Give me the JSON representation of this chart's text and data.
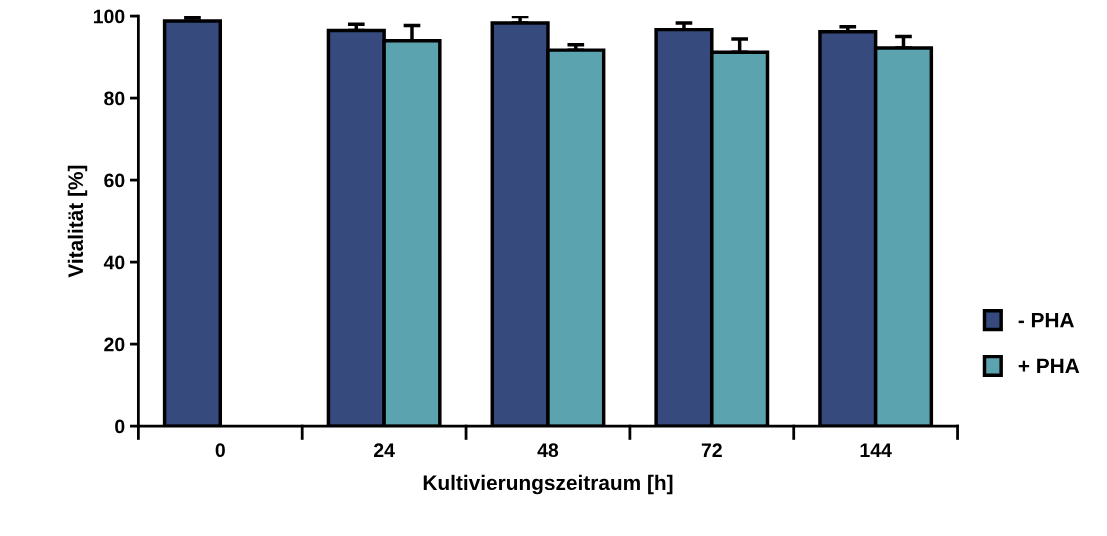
{
  "chart_data": {
    "type": "bar",
    "xlabel": "Kultivierungszeitraum [h]",
    "ylabel": "Vitalität [%]",
    "categories": [
      "0",
      "24",
      "48",
      "72",
      "144"
    ],
    "series": [
      {
        "name": "- PHA",
        "color": "#364a7e",
        "values": [
          98.8,
          96.5,
          98.3,
          96.7,
          96.2
        ],
        "errors": [
          [
            98.8,
            99.7
          ],
          [
            96.5,
            98.0
          ],
          [
            98.3,
            99.9
          ],
          [
            96.7,
            98.3
          ],
          [
            96.2,
            97.4
          ]
        ]
      },
      {
        "name": "+ PHA",
        "color": "#5ba3ae",
        "values": [
          null,
          94.0,
          91.7,
          91.2,
          92.2
        ],
        "errors": [
          null,
          [
            94.0,
            97.7
          ],
          [
            91.7,
            93.0
          ],
          [
            91.2,
            94.4
          ],
          [
            92.2,
            95.0
          ]
        ]
      }
    ],
    "ylim": [
      0,
      100
    ],
    "yticks": [
      0,
      20,
      40,
      60,
      80,
      100
    ],
    "grid": false,
    "legend": "right"
  }
}
